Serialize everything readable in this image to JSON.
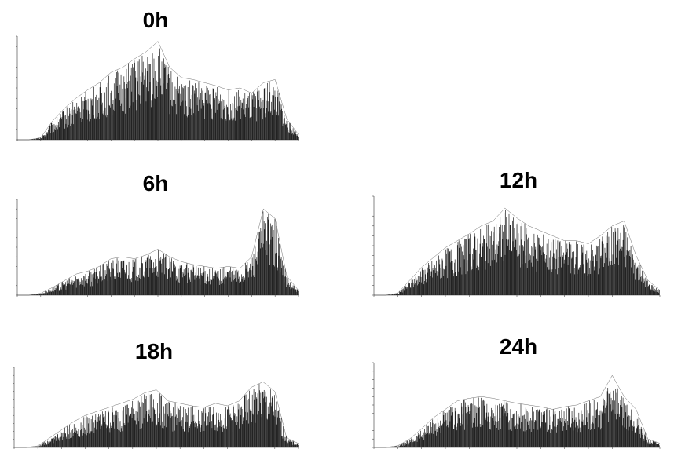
{
  "chart_data": [
    {
      "type": "area",
      "title": "0h",
      "x": [
        0,
        1,
        2,
        3,
        4,
        5,
        6,
        7,
        8,
        9,
        10,
        11,
        12,
        13,
        14,
        15,
        16,
        17,
        18,
        19,
        20,
        21,
        22,
        23,
        24
      ],
      "series": [
        {
          "values": [
            0,
            0,
            2,
            18,
            30,
            40,
            48,
            55,
            65,
            70,
            78,
            85,
            95,
            70,
            60,
            58,
            55,
            52,
            48,
            50,
            45,
            55,
            58,
            20,
            5
          ]
        }
      ],
      "ylim": [
        0,
        100
      ],
      "xlim": [
        0,
        24
      ],
      "grid": false,
      "fill_color": "#222222"
    },
    {
      "type": "area",
      "title": "6h",
      "x": [
        0,
        1,
        2,
        3,
        4,
        5,
        6,
        7,
        8,
        9,
        10,
        11,
        12,
        13,
        14,
        15,
        16,
        17,
        18,
        19,
        20,
        21,
        22,
        23,
        24
      ],
      "series": [
        {
          "values": [
            0,
            0,
            2,
            8,
            15,
            22,
            25,
            30,
            38,
            40,
            38,
            42,
            48,
            40,
            35,
            32,
            30,
            28,
            30,
            28,
            40,
            90,
            80,
            20,
            5
          ]
        }
      ],
      "ylim": [
        0,
        100
      ],
      "xlim": [
        0,
        24
      ],
      "grid": false,
      "fill_color": "#222222"
    },
    {
      "type": "area",
      "title": "12h",
      "x": [
        0,
        1,
        2,
        3,
        4,
        5,
        6,
        7,
        8,
        9,
        10,
        11,
        12,
        13,
        14,
        15,
        16,
        17,
        18,
        19,
        20,
        21,
        22,
        23,
        24
      ],
      "series": [
        {
          "values": [
            0,
            0,
            2,
            15,
            28,
            38,
            48,
            55,
            62,
            70,
            75,
            88,
            78,
            70,
            65,
            60,
            55,
            55,
            52,
            60,
            70,
            75,
            40,
            15,
            5
          ]
        }
      ],
      "ylim": [
        0,
        100
      ],
      "xlim": [
        0,
        24
      ],
      "grid": false,
      "fill_color": "#222222"
    },
    {
      "type": "area",
      "title": "18h",
      "x": [
        0,
        1,
        2,
        3,
        4,
        5,
        6,
        7,
        8,
        9,
        10,
        11,
        12,
        13,
        14,
        15,
        16,
        17,
        18,
        19,
        20,
        21,
        22,
        23,
        24
      ],
      "series": [
        {
          "values": [
            0,
            0,
            2,
            12,
            22,
            32,
            40,
            45,
            50,
            55,
            60,
            68,
            72,
            58,
            55,
            52,
            50,
            55,
            52,
            58,
            75,
            82,
            70,
            12,
            5
          ]
        }
      ],
      "ylim": [
        0,
        100
      ],
      "xlim": [
        0,
        24
      ],
      "grid": false,
      "fill_color": "#222222"
    },
    {
      "type": "area",
      "title": "24h",
      "x": [
        0,
        1,
        2,
        3,
        4,
        5,
        6,
        7,
        8,
        9,
        10,
        11,
        12,
        13,
        14,
        15,
        16,
        17,
        18,
        19,
        20,
        21,
        22,
        23,
        24
      ],
      "series": [
        {
          "values": [
            0,
            0,
            2,
            10,
            22,
            35,
            45,
            55,
            58,
            60,
            58,
            55,
            52,
            50,
            48,
            45,
            48,
            50,
            55,
            60,
            85,
            60,
            45,
            10,
            5
          ]
        }
      ],
      "ylim": [
        0,
        100
      ],
      "xlim": [
        0,
        24
      ],
      "grid": false,
      "fill_color": "#222222"
    }
  ]
}
